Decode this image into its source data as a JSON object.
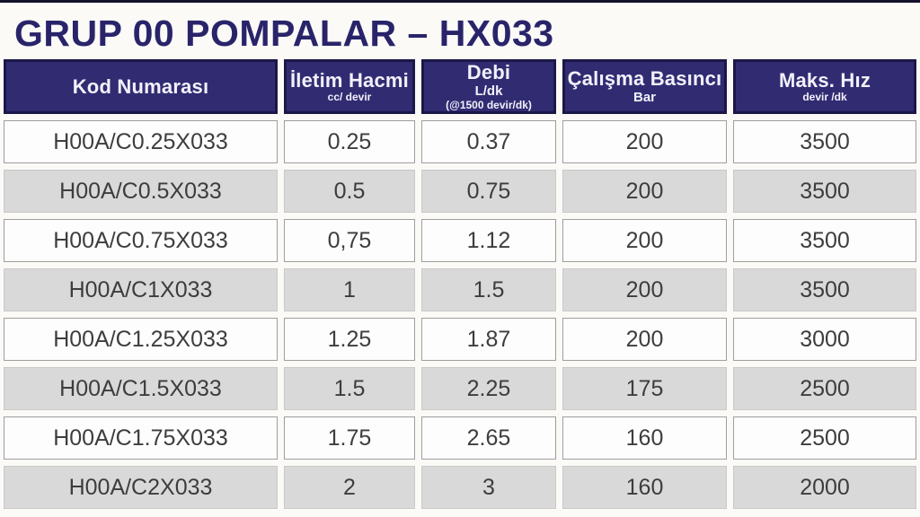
{
  "page": {
    "title": "GRUP 00 POMPALAR – HX033"
  },
  "colors": {
    "header_bg": "#312c72",
    "header_border": "#1b1747",
    "header_text": "#f3f1fb",
    "title_text": "#29246a",
    "row_white": "#fdfdfd",
    "row_gray": "#d9d9d9",
    "cell_text": "#3d3d3d",
    "top_strip": "#14122b"
  },
  "table": {
    "columns": [
      {
        "title": "Kod Numarası",
        "subs": []
      },
      {
        "title": "İletim Hacmi",
        "subs": [
          "cc/ devir"
        ]
      },
      {
        "title": "Debi",
        "subs": [
          "L/dk",
          "(@1500 devir/dk)"
        ]
      },
      {
        "title": "Çalışma Basıncı",
        "subs": [
          "Bar"
        ]
      },
      {
        "title": "Maks. Hız",
        "subs": [
          "devir /dk"
        ]
      }
    ],
    "rows": [
      {
        "kod": "H00A/C0.25X033",
        "iletim_hacmi": "0.25",
        "debi": "0.37",
        "basinc": "200",
        "hiz": "3500"
      },
      {
        "kod": "H00A/C0.5X033",
        "iletim_hacmi": "0.5",
        "debi": "0.75",
        "basinc": "200",
        "hiz": "3500"
      },
      {
        "kod": "H00A/C0.75X033",
        "iletim_hacmi": "0,75",
        "debi": "1.12",
        "basinc": "200",
        "hiz": "3500"
      },
      {
        "kod": "H00A/C1X033",
        "iletim_hacmi": "1",
        "debi": "1.5",
        "basinc": "200",
        "hiz": "3500"
      },
      {
        "kod": "H00A/C1.25X033",
        "iletim_hacmi": "1.25",
        "debi": "1.87",
        "basinc": "200",
        "hiz": "3000"
      },
      {
        "kod": "H00A/C1.5X033",
        "iletim_hacmi": "1.5",
        "debi": "2.25",
        "basinc": "175",
        "hiz": "2500"
      },
      {
        "kod": "H00A/C1.75X033",
        "iletim_hacmi": "1.75",
        "debi": "2.65",
        "basinc": "160",
        "hiz": "2500"
      },
      {
        "kod": "H00A/C2X033",
        "iletim_hacmi": "2",
        "debi": "3",
        "basinc": "160",
        "hiz": "2000"
      }
    ]
  }
}
